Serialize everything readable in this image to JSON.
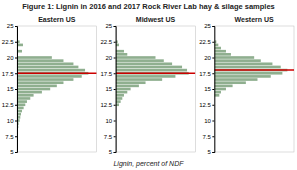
{
  "title": "Figure 1: Lignin in 2016 and 2017 Rock River Lab hay & silage samples",
  "xlabel": "Lignin, percent of NDF",
  "chart_data": [
    {
      "type": "bar",
      "orientation": "horizontal",
      "title": "Eastern US",
      "color": "#8faf8f",
      "x": [
        22.5,
        22.0,
        21.0,
        20.0,
        19.5,
        19.0,
        18.5,
        18.0,
        17.5,
        17.0,
        16.5,
        16.0,
        15.5,
        15.0,
        14.5,
        14.0,
        13.5,
        13.0,
        12.5,
        12.0,
        11.5,
        11.0,
        10.5,
        10.0,
        9.5,
        9.0
      ],
      "values": [
        0.8,
        1.8,
        1.5,
        10.5,
        14.0,
        17.0,
        18.5,
        20.5,
        21.5,
        19.5,
        17.0,
        14.0,
        12.0,
        10.0,
        7.5,
        5.0,
        4.0,
        3.0,
        2.5,
        2.0,
        1.5,
        1.2,
        1.0,
        0.8,
        0.5,
        0.4
      ],
      "reference_line": {
        "value": 17.5,
        "color": "#cc0000"
      },
      "xlim": [
        0,
        24
      ],
      "ylim": [
        5,
        25
      ],
      "yticks": [
        5,
        7.5,
        10,
        12.5,
        15,
        17.5,
        20,
        22.5,
        25
      ],
      "tick_labels": "y"
    },
    {
      "type": "bar",
      "orientation": "horizontal",
      "title": "Midwest US",
      "color": "#8faf8f",
      "x": [
        22.5,
        22.0,
        21.0,
        20.5,
        20.0,
        19.5,
        19.0,
        18.5,
        18.0,
        17.5,
        17.0,
        16.5,
        16.0,
        15.5,
        15.0,
        14.5,
        14.0,
        13.5,
        13.0,
        12.5
      ],
      "values": [
        0.6,
        1.0,
        2.5,
        3.5,
        12.0,
        14.5,
        17.0,
        20.0,
        21.5,
        22.0,
        18.0,
        14.0,
        9.0,
        7.0,
        4.5,
        3.5,
        2.5,
        2.0,
        1.5,
        1.0
      ],
      "reference_line": {
        "value": 17.5,
        "color": "#cc0000"
      },
      "xlim": [
        0,
        24
      ],
      "ylim": [
        5,
        25
      ],
      "yticks": [
        5,
        7.5,
        10,
        12.5,
        15,
        17.5,
        20,
        22.5,
        25
      ],
      "tick_labels": "y"
    },
    {
      "type": "bar",
      "orientation": "horizontal",
      "title": "Western US",
      "color": "#8faf8f",
      "x": [
        22.5,
        22.0,
        21.5,
        21.0,
        20.5,
        20.0,
        19.5,
        19.0,
        18.5,
        18.0,
        17.5,
        17.0,
        16.5,
        16.0,
        15.5,
        15.0,
        14.5,
        14.0
      ],
      "values": [
        0.6,
        1.2,
        2.0,
        3.5,
        5.0,
        12.0,
        14.0,
        17.5,
        20.0,
        22.0,
        20.5,
        17.0,
        13.0,
        9.5,
        5.5,
        3.5,
        2.0,
        1.5
      ],
      "reference_line": {
        "value": 18.0,
        "color": "#cc0000"
      },
      "xlim": [
        0,
        24
      ],
      "ylim": [
        5,
        25
      ],
      "yticks": [
        5,
        7.5,
        10,
        12.5,
        15,
        17.5,
        20,
        22.5,
        25
      ],
      "tick_labels": "y"
    }
  ]
}
